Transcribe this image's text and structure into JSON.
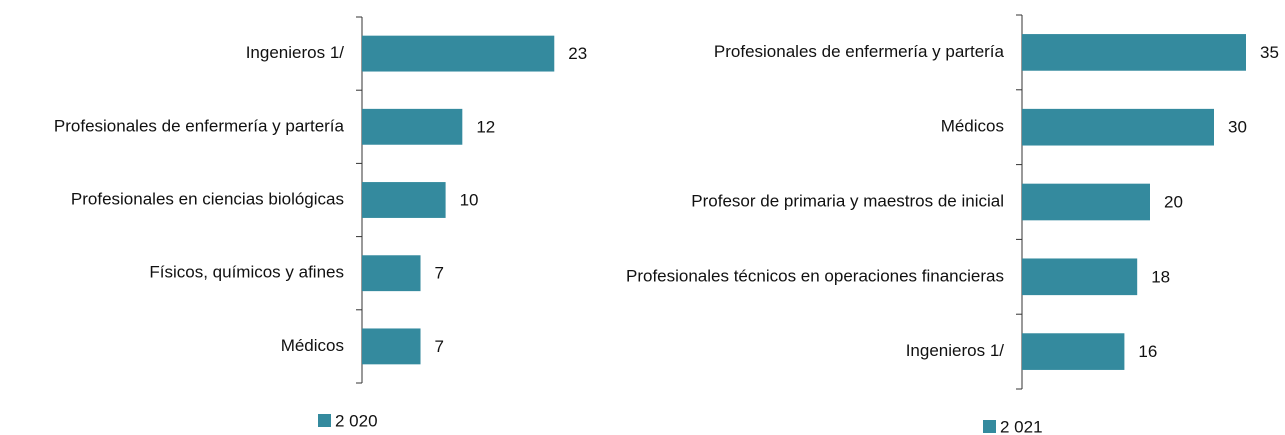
{
  "chart_data": [
    {
      "type": "hbar",
      "categories": [
        "Ingenieros 1/",
        "Profesionales de enfermería y partería",
        "Profesionales en ciencias biológicas",
        "Físicos, químicos y afines",
        "Médicos"
      ],
      "series": [
        {
          "name": "2 020",
          "color": "#348a9e",
          "values": [
            23,
            12,
            10,
            7,
            7
          ]
        }
      ],
      "xlim": [
        0,
        25
      ]
    },
    {
      "type": "hbar",
      "categories": [
        "Profesionales de enfermería y partería",
        "Médicos",
        "Profesor de primaria y maestros de inicial",
        "Profesionales técnicos en operaciones financieras",
        "Ingenieros 1/"
      ],
      "series": [
        {
          "name": "2 021",
          "color": "#348a9e",
          "values": [
            35,
            30,
            20,
            18,
            16
          ]
        }
      ],
      "xlim": [
        0,
        40
      ]
    }
  ]
}
